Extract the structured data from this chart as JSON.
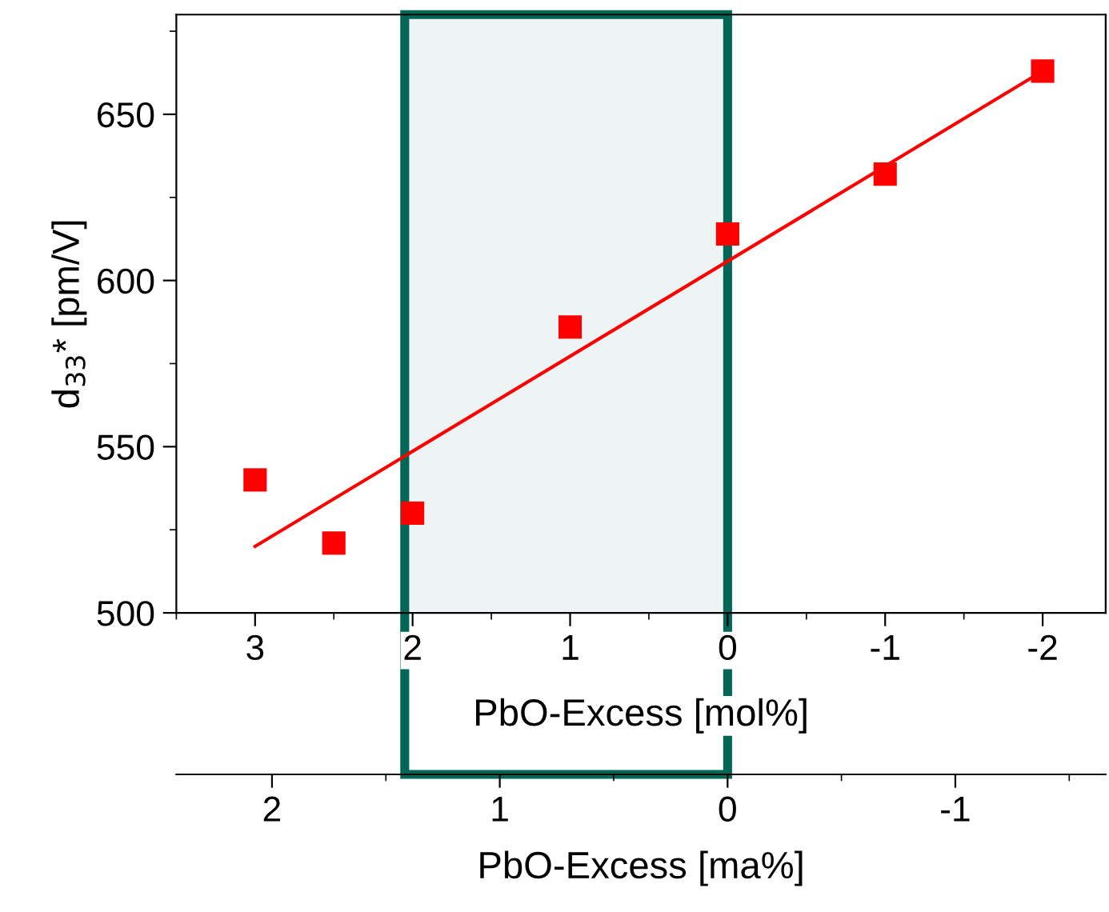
{
  "chart_data": {
    "type": "scatter",
    "xlabel": "PbO-Excess [mol%]",
    "ylabel": "d$_{33}$* [pm/V]",
    "x2label": "PbO-Excess [ma%]",
    "series": [
      {
        "color": "#ff0000",
        "marker": "square",
        "x": [
          3,
          2.5,
          2,
          1,
          0,
          -1,
          -2
        ],
        "values": [
          540,
          521,
          530,
          586,
          614,
          632,
          663
        ]
      },
      {
        "type": "line",
        "color": "#ff0000",
        "marker": "none",
        "line_style": "solid",
        "x": [
          3,
          -2
        ],
        "values": [
          520,
          663
        ]
      }
    ],
    "xlim": [
      3.5,
      -2.4
    ],
    "xticks": [
      3,
      2,
      1,
      0,
      -1,
      -2
    ],
    "ylim": [
      500,
      680
    ],
    "yticks": [
      500,
      550,
      600,
      650
    ],
    "x2lim": [
      2.42,
      -1.66
    ],
    "x2ticks": [
      2,
      1,
      0,
      -1
    ],
    "bands": [
      {
        "axis": "x",
        "from": 2.05,
        "to": 0,
        "color": "#006655"
      }
    ],
    "grid": false,
    "legend": false
  }
}
